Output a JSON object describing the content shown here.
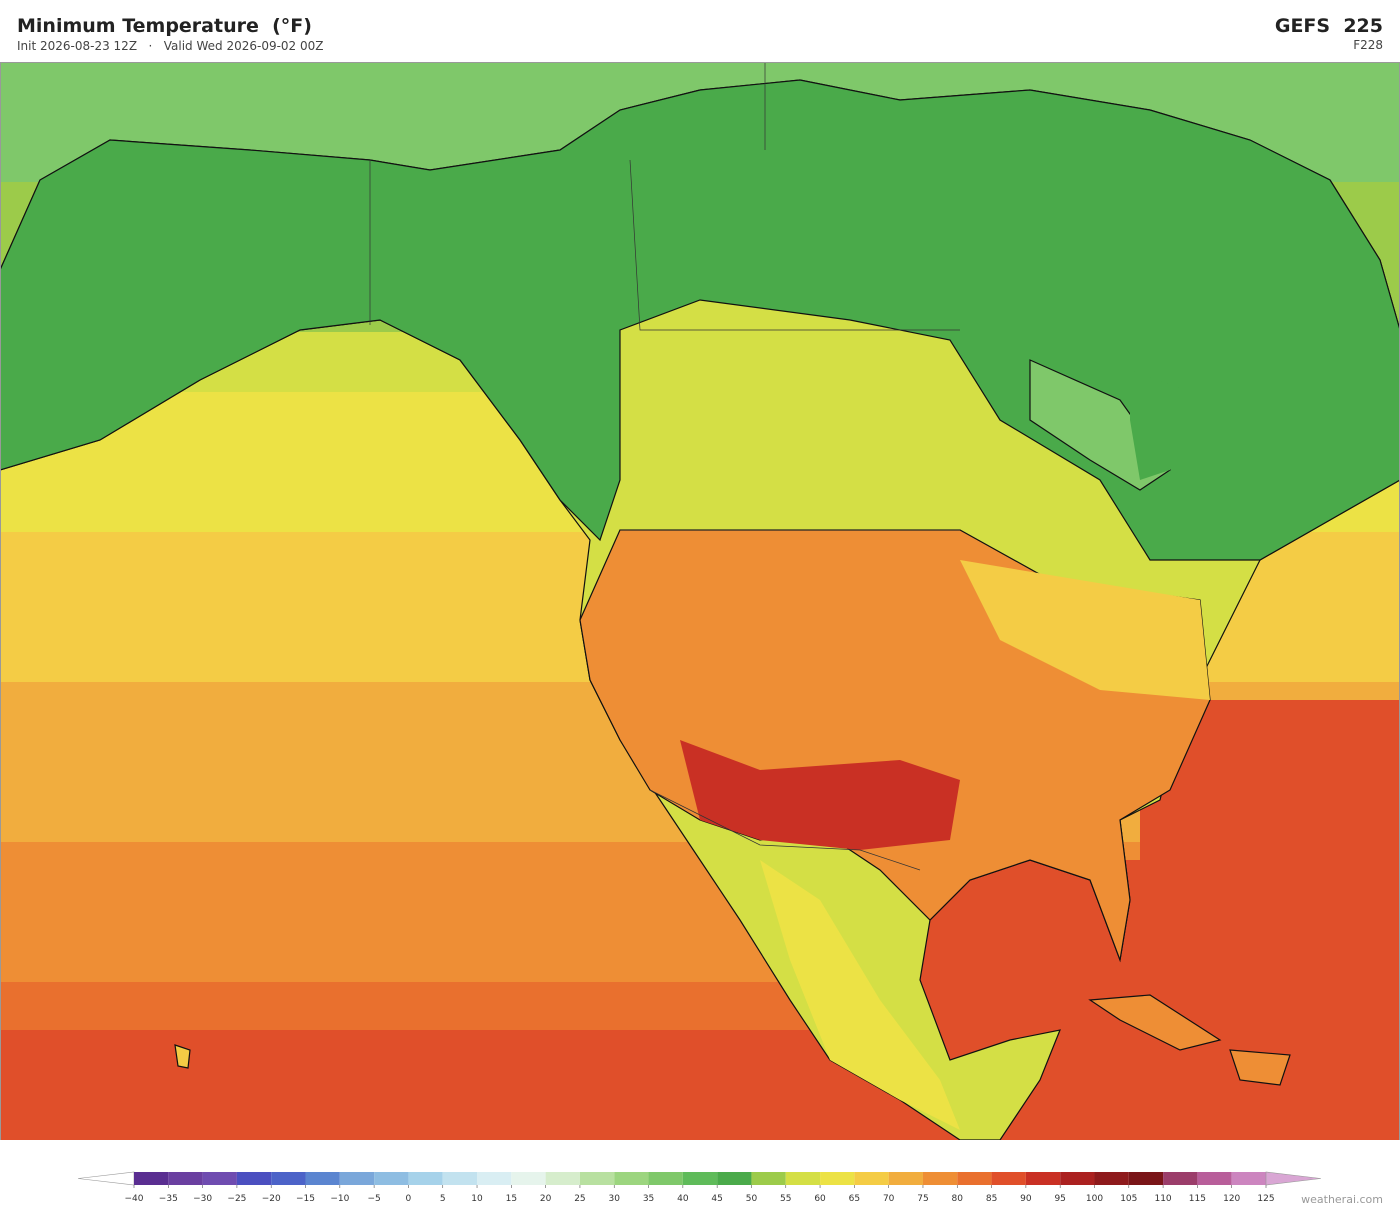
{
  "header": {
    "title": "Minimum Temperature  (°F)",
    "subtitle": "Init 2026-08-23 12Z   ·   Valid Wed 2026-09-02 00Z",
    "model": "GEFS  225",
    "forecast_hour": "F228"
  },
  "colorbar": {
    "ticks": [
      {
        "value": -40,
        "label": "−40"
      },
      {
        "value": -35,
        "label": "−35"
      },
      {
        "value": -30,
        "label": "−30"
      },
      {
        "value": -25,
        "label": "−25"
      },
      {
        "value": -20,
        "label": "−20"
      },
      {
        "value": -15,
        "label": "−15"
      },
      {
        "value": -10,
        "label": "−10"
      },
      {
        "value": -5,
        "label": "−5"
      },
      0,
      5,
      10,
      15,
      20,
      25,
      30,
      35,
      40,
      45,
      50,
      55,
      60,
      65,
      70,
      75,
      80,
      85,
      90,
      95,
      100,
      105,
      110,
      115,
      120,
      125
    ],
    "colors": [
      "#5a2e91",
      "#6a3fa0",
      "#6f4cb0",
      "#4b4fc0",
      "#4c63c8",
      "#5b85d0",
      "#7aa7da",
      "#8ebde2",
      "#a6d2ea",
      "#c2e2ef",
      "#d9eef3",
      "#e6f4ec",
      "#d6edcc",
      "#b8e0a0",
      "#9cd57f",
      "#7fc86a",
      "#5fbb5a",
      "#4aaa4a",
      "#9ccb4a",
      "#d4df45",
      "#ece245",
      "#f4cc45",
      "#f1ad3e",
      "#ee8e35",
      "#e9702e",
      "#e04f2a",
      "#c93024",
      "#ab2120",
      "#8e1a1c",
      "#7a1518",
      "#9b3d6a",
      "#b85e9a",
      "#cc85bf"
    ],
    "under_color": "#ffffff",
    "over_color": "#d9a6d4"
  },
  "footer": {
    "credit": "weatherai.com"
  }
}
